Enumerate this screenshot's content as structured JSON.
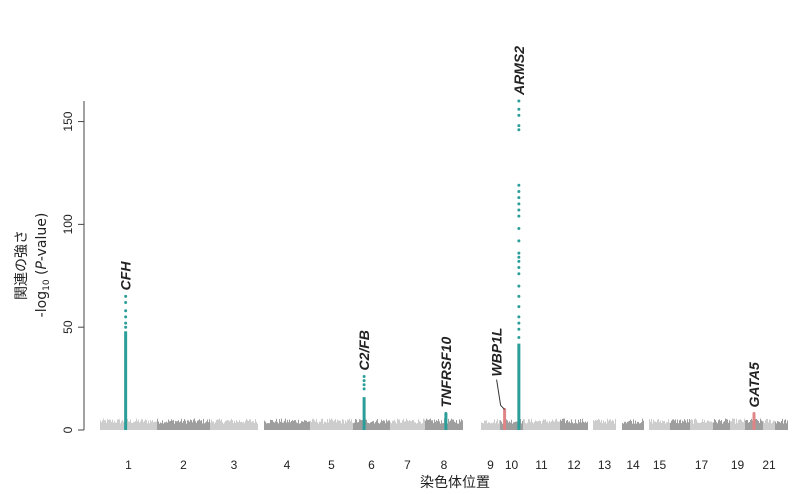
{
  "chart_data": {
    "type": "scatter",
    "subtype": "manhattan",
    "title": "",
    "xlabel": "染色体位置",
    "ylabel_line1": "関連の強さ",
    "ylabel_line2_prefix": "-log",
    "ylabel_line2_sub": "10",
    "ylabel_line2_open": " (",
    "ylabel_line2_italic": "P",
    "ylabel_line2_suffix": "-value)",
    "ylim": [
      0,
      160
    ],
    "yticks": [
      "0",
      "50",
      "100",
      "150"
    ],
    "grid": false,
    "chromosomes": [
      {
        "label": "1",
        "show": true
      },
      {
        "label": "2",
        "show": true
      },
      {
        "label": "3",
        "show": true
      },
      {
        "label": "4",
        "show": true
      },
      {
        "label": "5",
        "show": true
      },
      {
        "label": "6",
        "show": true
      },
      {
        "label": "7",
        "show": true
      },
      {
        "label": "8",
        "show": true
      },
      {
        "label": "9",
        "show": true
      },
      {
        "label": "10",
        "show": true
      },
      {
        "label": "11",
        "show": true
      },
      {
        "label": "12",
        "show": true
      },
      {
        "label": "13",
        "show": true
      },
      {
        "label": "14",
        "show": true
      },
      {
        "label": "15",
        "show": true
      },
      {
        "label": "16",
        "show": false
      },
      {
        "label": "17",
        "show": true
      },
      {
        "label": "18",
        "show": false
      },
      {
        "label": "19",
        "show": true
      },
      {
        "label": "20",
        "show": false
      },
      {
        "label": "21",
        "show": true
      },
      {
        "label": "22",
        "show": false
      }
    ],
    "colors": {
      "odd_chrom": "#cdcdcd",
      "even_chrom": "#9e9e9e",
      "highlight": "#2b9e9a",
      "secondary": "#e08585"
    },
    "loci": [
      {
        "gene": "CFH",
        "chrom": "1",
        "offset": 0.45,
        "color": "highlight",
        "max": 65,
        "extra": [
          62,
          58,
          55,
          52,
          50
        ],
        "label_rotated": true
      },
      {
        "gene": "C2/FB",
        "chrom": "6",
        "offset": 0.3,
        "color": "highlight",
        "max": 26,
        "extra": [
          24,
          22,
          20
        ],
        "label_rotated": true
      },
      {
        "gene": "TNFRSF10",
        "chrom": "8",
        "offset": 0.55,
        "color": "highlight",
        "max": 8,
        "extra": [],
        "label_rotated": true
      },
      {
        "gene": "WBP1L",
        "chrom": "10",
        "offset": 0.2,
        "color": "secondary",
        "max": 10,
        "extra": [],
        "label_rotated": true
      },
      {
        "gene": "ARMS2",
        "chrom": "10",
        "offset": 0.82,
        "color": "highlight",
        "max": 160,
        "extra": [
          156,
          153,
          148,
          146,
          119,
          116,
          113,
          110,
          107,
          104,
          98,
          92,
          86,
          84,
          82,
          79,
          76,
          70,
          65,
          60,
          55,
          52,
          49,
          45
        ],
        "label_rotated": true
      },
      {
        "gene": "GATA5",
        "chrom": "20",
        "offset": 0.5,
        "color": "secondary",
        "max": 8,
        "extra": [],
        "label_rotated": true
      }
    ]
  }
}
